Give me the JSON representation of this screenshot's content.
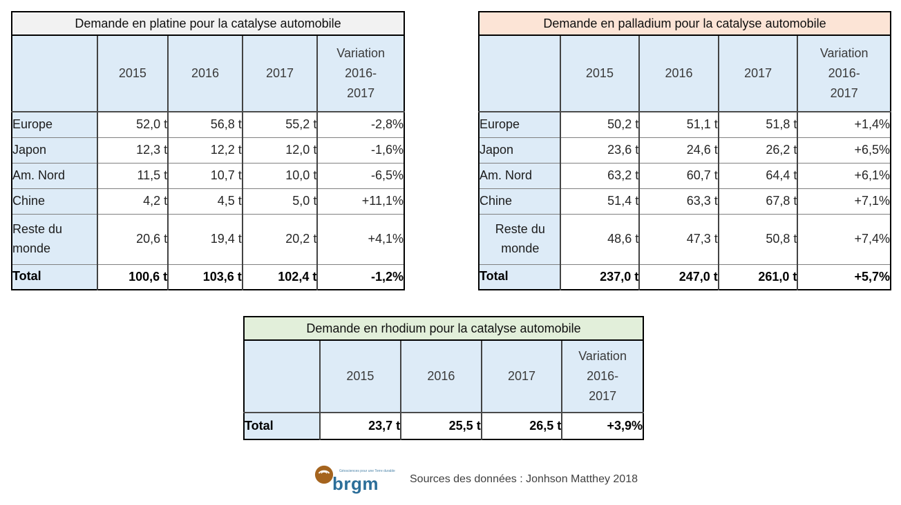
{
  "page": {
    "background": "#ffffff"
  },
  "colors": {
    "header_blue": "#DDEBF7",
    "platine_title_bg": "#F2F2F2",
    "palladium_title_bg": "#FCE4D6",
    "rhodium_title_bg": "#E2EFDA",
    "brgm_orange": "#A5641E",
    "brgm_blue": "#2C6E99"
  },
  "chart_data": [
    {
      "type": "table",
      "metal": "platine",
      "title": "Demande en platine pour la catalyse automobile",
      "title_bg": "#F2F2F2",
      "columns": [
        "",
        "2015",
        "2016",
        "2017",
        "Variation 2016-2017"
      ],
      "variation_lines": [
        "Variation",
        "2016-",
        "2017"
      ],
      "rows": [
        {
          "label": "Europe",
          "values": [
            "52,0 t",
            "56,8 t",
            "55,2 t",
            "-2,8%"
          ]
        },
        {
          "label": "Japon",
          "values": [
            "12,3 t",
            "12,2 t",
            "12,0 t",
            "-1,6%"
          ]
        },
        {
          "label": "Am. Nord",
          "values": [
            "11,5 t",
            "10,7 t",
            "10,0 t",
            "-6,5%"
          ]
        },
        {
          "label": "Chine",
          "values": [
            "4,2 t",
            "4,5 t",
            "5,0 t",
            "+11,1%"
          ]
        },
        {
          "label": "Reste du monde",
          "values": [
            "20,6 t",
            "19,4 t",
            "20,2 t",
            "+4,1%"
          ]
        }
      ],
      "total": {
        "label": "Total",
        "values": [
          "100,6 t",
          "103,6 t",
          "102,4 t",
          "-1,2%"
        ]
      }
    },
    {
      "type": "table",
      "metal": "palladium",
      "title": "Demande en palladium pour la catalyse automobile",
      "title_bg": "#FCE4D6",
      "columns": [
        "",
        "2015",
        "2016",
        "2017",
        "Variation 2016-2017"
      ],
      "variation_lines": [
        "Variation",
        "2016-",
        "2017"
      ],
      "rows": [
        {
          "label": "Europe",
          "values": [
            "50,2 t",
            "51,1 t",
            "51,8 t",
            "+1,4%"
          ]
        },
        {
          "label": "Japon",
          "values": [
            "23,6 t",
            "24,6 t",
            "26,2 t",
            "+6,5%"
          ]
        },
        {
          "label": "Am. Nord",
          "values": [
            "63,2 t",
            "60,7 t",
            "64,4 t",
            "+6,1%"
          ]
        },
        {
          "label": "Chine",
          "values": [
            "51,4 t",
            "63,3 t",
            "67,8 t",
            "+7,1%"
          ]
        },
        {
          "label": "Reste du monde",
          "label_align": "center",
          "values": [
            "48,6 t",
            "47,3 t",
            "50,8 t",
            "+7,4%"
          ]
        }
      ],
      "total": {
        "label": "Total",
        "values": [
          "237,0 t",
          "247,0 t",
          "261,0 t",
          "+5,7%"
        ]
      }
    },
    {
      "type": "table",
      "metal": "rhodium",
      "title": "Demande en rhodium pour la catalyse automobile",
      "title_bg": "#E2EFDA",
      "columns": [
        "",
        "2015",
        "2016",
        "2017",
        "Variation 2016-2017"
      ],
      "variation_lines": [
        "Variation",
        "2016-",
        "2017"
      ],
      "rows": [],
      "total": {
        "label": "Total",
        "values": [
          "23,7 t",
          "25,5 t",
          "26,5 t",
          "+3,9%"
        ]
      }
    }
  ],
  "footer": {
    "logo_text": "brgm",
    "logo_tagline": "Géosciences pour une Terre durable",
    "source_text": "Sources des données : Jonhson Matthey 2018"
  }
}
